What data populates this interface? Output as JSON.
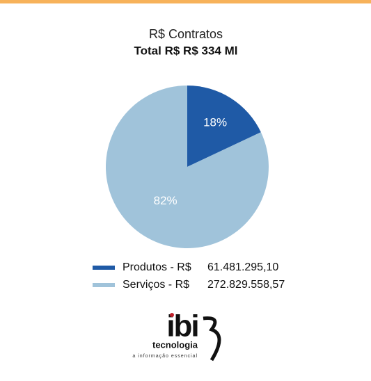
{
  "chart_data": {
    "type": "pie",
    "title": "R$ Contratos",
    "subtitle": "Total R$  R$ 334 Ml",
    "categories": [
      "Produtos - R$",
      "Serviços - R$"
    ],
    "values": [
      18,
      82
    ],
    "value_labels": [
      "18%",
      "82%"
    ],
    "colors": [
      "#1f5aa6",
      "#a0c3da"
    ],
    "amounts": [
      "61.481.295,10",
      "272.829.558,57"
    ]
  },
  "logo": {
    "brand": "ibi",
    "name": "tecnologia",
    "tagline": "a informação essencial"
  }
}
